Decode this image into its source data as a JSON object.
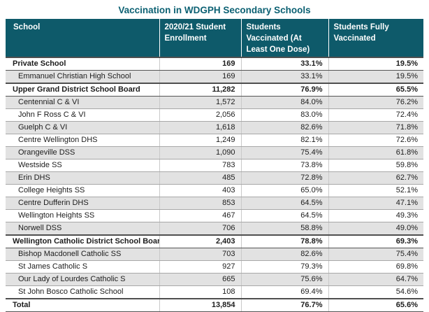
{
  "title": "Vaccination in WDGPH Secondary Schools",
  "colors": {
    "header_bg": "#0e5a6a",
    "title_text": "#0c6173",
    "shaded_row": "#e2e2e2",
    "row_border": "#a8a8a8",
    "section_border": "#4f4f4f"
  },
  "table": {
    "headers": {
      "school": "School",
      "enrollment": "2020/21 Student Enrollment",
      "one_dose": "Students Vaccinated (At Least One Dose)",
      "fully": "Students Fully Vaccinated"
    },
    "rows": [
      {
        "school": "Private School",
        "enrollment": "169",
        "one_dose": "33.1%",
        "fully": "19.5%",
        "bold": true,
        "shaded": false
      },
      {
        "school": "Emmanuel Christian High School",
        "enrollment": "169",
        "one_dose": "33.1%",
        "fully": "19.5%",
        "bold": false,
        "shaded": true
      },
      {
        "school": "Upper Grand District School Board",
        "enrollment": "11,282",
        "one_dose": "76.9%",
        "fully": "65.5%",
        "bold": true,
        "shaded": false
      },
      {
        "school": "Centennial C & VI",
        "enrollment": "1,572",
        "one_dose": "84.0%",
        "fully": "76.2%",
        "bold": false,
        "shaded": true
      },
      {
        "school": "John F Ross C & VI",
        "enrollment": "2,056",
        "one_dose": "83.0%",
        "fully": "72.4%",
        "bold": false,
        "shaded": false
      },
      {
        "school": "Guelph C & VI",
        "enrollment": "1,618",
        "one_dose": "82.6%",
        "fully": "71.8%",
        "bold": false,
        "shaded": true
      },
      {
        "school": "Centre Wellington DHS",
        "enrollment": "1,249",
        "one_dose": "82.1%",
        "fully": "72.6%",
        "bold": false,
        "shaded": false
      },
      {
        "school": "Orangeville DSS",
        "enrollment": "1,090",
        "one_dose": "75.4%",
        "fully": "61.8%",
        "bold": false,
        "shaded": true
      },
      {
        "school": "Westside SS",
        "enrollment": "783",
        "one_dose": "73.8%",
        "fully": "59.8%",
        "bold": false,
        "shaded": false
      },
      {
        "school": "Erin DHS",
        "enrollment": "485",
        "one_dose": "72.8%",
        "fully": "62.7%",
        "bold": false,
        "shaded": true
      },
      {
        "school": "College Heights SS",
        "enrollment": "403",
        "one_dose": "65.0%",
        "fully": "52.1%",
        "bold": false,
        "shaded": false
      },
      {
        "school": "Centre Dufferin DHS",
        "enrollment": "853",
        "one_dose": "64.5%",
        "fully": "47.1%",
        "bold": false,
        "shaded": true
      },
      {
        "school": "Wellington Heights SS",
        "enrollment": "467",
        "one_dose": "64.5%",
        "fully": "49.3%",
        "bold": false,
        "shaded": false
      },
      {
        "school": "Norwell DSS",
        "enrollment": "706",
        "one_dose": "58.8%",
        "fully": "49.0%",
        "bold": false,
        "shaded": true
      },
      {
        "school": "Wellington Catholic District School Board",
        "enrollment": "2,403",
        "one_dose": "78.8%",
        "fully": "69.3%",
        "bold": true,
        "shaded": false
      },
      {
        "school": "Bishop Macdonell Catholic SS",
        "enrollment": "703",
        "one_dose": "82.6%",
        "fully": "75.4%",
        "bold": false,
        "shaded": true
      },
      {
        "school": "St James Catholic S",
        "enrollment": "927",
        "one_dose": "79.3%",
        "fully": "69.8%",
        "bold": false,
        "shaded": false
      },
      {
        "school": "Our Lady of Lourdes Catholic S",
        "enrollment": "665",
        "one_dose": "75.6%",
        "fully": "64.7%",
        "bold": false,
        "shaded": true
      },
      {
        "school": "St John Bosco Catholic School",
        "enrollment": "108",
        "one_dose": "69.4%",
        "fully": "54.6%",
        "bold": false,
        "shaded": false
      },
      {
        "school": "Total",
        "enrollment": "13,854",
        "one_dose": "76.7%",
        "fully": "65.6%",
        "bold": true,
        "shaded": false
      }
    ]
  },
  "chart_data": {
    "type": "table",
    "title": "Vaccination in WDGPH Secondary Schools",
    "columns": [
      "School",
      "2020/21 Student Enrollment",
      "Students Vaccinated (At Least One Dose)",
      "Students Fully Vaccinated"
    ],
    "rows": [
      [
        "Private School",
        169,
        33.1,
        19.5
      ],
      [
        "Emmanuel Christian High School",
        169,
        33.1,
        19.5
      ],
      [
        "Upper Grand District School Board",
        11282,
        76.9,
        65.5
      ],
      [
        "Centennial C & VI",
        1572,
        84.0,
        76.2
      ],
      [
        "John F Ross C & VI",
        2056,
        83.0,
        72.4
      ],
      [
        "Guelph C & VI",
        1618,
        82.6,
        71.8
      ],
      [
        "Centre Wellington DHS",
        1249,
        82.1,
        72.6
      ],
      [
        "Orangeville DSS",
        1090,
        75.4,
        61.8
      ],
      [
        "Westside SS",
        783,
        73.8,
        59.8
      ],
      [
        "Erin DHS",
        485,
        72.8,
        62.7
      ],
      [
        "College Heights SS",
        403,
        65.0,
        52.1
      ],
      [
        "Centre Dufferin DHS",
        853,
        64.5,
        47.1
      ],
      [
        "Wellington Heights SS",
        467,
        64.5,
        49.3
      ],
      [
        "Norwell DSS",
        706,
        58.8,
        49.0
      ],
      [
        "Wellington Catholic District School Board",
        2403,
        78.8,
        69.3
      ],
      [
        "Bishop Macdonell Catholic SS",
        703,
        82.6,
        75.4
      ],
      [
        "St James Catholic S",
        927,
        79.3,
        69.8
      ],
      [
        "Our Lady of Lourdes Catholic S",
        665,
        75.6,
        64.7
      ],
      [
        "St John Bosco Catholic School",
        108,
        69.4,
        54.6
      ],
      [
        "Total",
        13854,
        76.7,
        65.6
      ]
    ],
    "notes": {
      "percent_columns": [
        "Students Vaccinated (At Least One Dose)",
        "Students Fully Vaccinated"
      ],
      "section_rows": [
        "Private School",
        "Upper Grand District School Board",
        "Wellington Catholic District School Board",
        "Total"
      ]
    }
  }
}
